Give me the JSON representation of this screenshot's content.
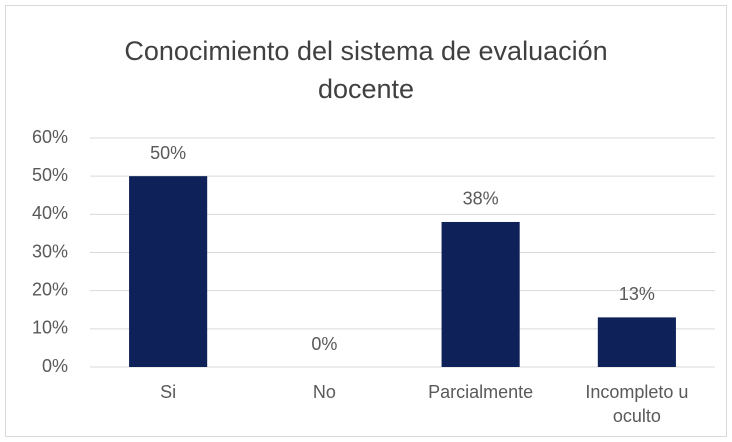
{
  "chart_data": {
    "type": "bar",
    "title": "Conocimiento del sistema de evaluación docente",
    "categories": [
      "Si",
      "No",
      "Parcialmente",
      "Incompleto u oculto"
    ],
    "values": [
      50,
      0,
      38,
      13
    ],
    "value_labels": [
      "50%",
      "0%",
      "38%",
      "13%"
    ],
    "color": "#0f2159",
    "ylim": [
      0,
      60
    ],
    "yticks": [
      {
        "value": 0,
        "label": "0%"
      },
      {
        "value": 10,
        "label": "10%"
      },
      {
        "value": 20,
        "label": "20%"
      },
      {
        "value": 30,
        "label": "30%"
      },
      {
        "value": 40,
        "label": "40%"
      },
      {
        "value": 50,
        "label": "50%"
      },
      {
        "value": 60,
        "label": "60%"
      }
    ],
    "grid": true
  }
}
